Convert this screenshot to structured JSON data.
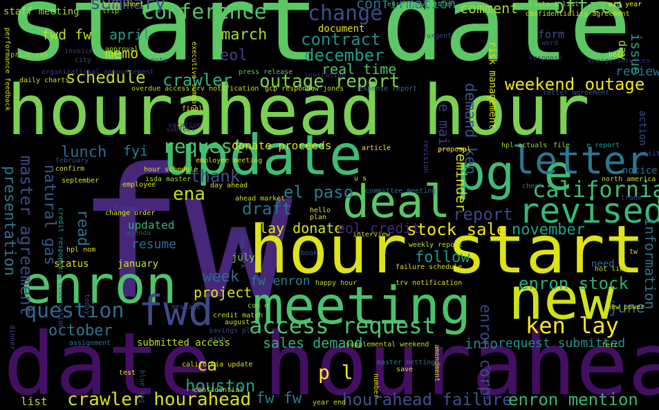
{
  "words": [
    {
      "text": "start date",
      "color": "#5cc863"
    },
    {
      "text": "hourahead hour",
      "color": "#7ad151"
    },
    {
      "text": "fw",
      "color": "#46277a"
    },
    {
      "text": "date hourahead",
      "color": "#440f62"
    },
    {
      "text": "update",
      "color": "#3fbc73"
    },
    {
      "text": "hour start",
      "color": "#dde318"
    },
    {
      "text": "meeting",
      "color": "#4ac16d"
    },
    {
      "text": "new",
      "color": "#d0e11c"
    },
    {
      "text": "enron",
      "color": "#4ec36b"
    },
    {
      "text": "deal",
      "color": "#58c765"
    },
    {
      "text": "pg e",
      "color": "#3fbc73"
    },
    {
      "text": "letter",
      "color": "#2a788e"
    },
    {
      "text": "revised",
      "color": "#37b878"
    },
    {
      "text": "fwd",
      "color": "#3e4a89"
    },
    {
      "text": "california",
      "color": "#3dbc74"
    },
    {
      "text": "conference",
      "color": "#52c569"
    },
    {
      "text": "change",
      "color": "#3e4c8a"
    },
    {
      "text": "office",
      "color": "#6ccd5a"
    },
    {
      "text": "comment",
      "color": "#9fda3a"
    },
    {
      "text": "summary",
      "color": "#3d4e8a"
    },
    {
      "text": "confirmation",
      "color": "#2c718e"
    },
    {
      "text": "contract",
      "color": "#228b8d"
    },
    {
      "text": "march",
      "color": "#a2da37"
    },
    {
      "text": "december",
      "color": "#1fa088"
    },
    {
      "text": "eol",
      "color": "#433e85"
    },
    {
      "text": "real time",
      "color": "#52c569"
    },
    {
      "text": "schedule",
      "color": "#b5de2b"
    },
    {
      "text": "crawler",
      "color": "#2fb47c"
    },
    {
      "text": "outage report",
      "color": "#7ad151"
    },
    {
      "text": "weekend outage",
      "color": "#f1e51d"
    },
    {
      "text": "request",
      "color": "#4ec36b"
    },
    {
      "text": "access request",
      "color": "#50c46a"
    },
    {
      "text": "ken lay",
      "color": "#fde725"
    },
    {
      "text": "question",
      "color": "#2f6c8e"
    },
    {
      "text": "october",
      "color": "#2a788e"
    },
    {
      "text": "week",
      "color": "#31688e"
    },
    {
      "text": "project",
      "color": "#dde318"
    },
    {
      "text": "june",
      "color": "#30698e"
    },
    {
      "text": "information",
      "color": "#2a768e"
    },
    {
      "text": "enron stock",
      "color": "#29af7f"
    },
    {
      "text": "stock sale",
      "color": "#f1e51d"
    },
    {
      "text": "november",
      "color": "#20a486"
    },
    {
      "text": "draft",
      "color": "#2c728e"
    },
    {
      "text": "report",
      "color": "#414487"
    },
    {
      "text": "lay donate",
      "color": "#dde318"
    },
    {
      "text": "eol credit",
      "color": "#482878"
    },
    {
      "text": "follow",
      "color": "#1f988b"
    },
    {
      "text": "fw enron",
      "color": "#26828e"
    },
    {
      "text": "sales demand",
      "color": "#2db27d"
    },
    {
      "text": "p l",
      "color": "#fde725"
    },
    {
      "text": "ca",
      "color": "#d8e219"
    },
    {
      "text": "houston",
      "color": "#1fa088"
    },
    {
      "text": "crawler hourahead",
      "color": "#d8e219"
    },
    {
      "text": "fw fw",
      "color": "#287c8e"
    },
    {
      "text": "hourahead failure",
      "color": "#3b528b"
    },
    {
      "text": "enron mention",
      "color": "#35b779"
    },
    {
      "text": "info",
      "color": "#25858e"
    },
    {
      "text": "request submitted",
      "color": "#21918c"
    },
    {
      "text": "submitted access",
      "color": "#c2df23"
    },
    {
      "text": "list",
      "color": "#b5de2b"
    },
    {
      "text": "thank",
      "color": "#3b528b"
    },
    {
      "text": "ena",
      "color": "#c2df23"
    },
    {
      "text": "lunch",
      "color": "#30698e"
    },
    {
      "text": "fyi",
      "color": "#26828e"
    },
    {
      "text": "memo",
      "color": "#d0e11c"
    },
    {
      "text": "april",
      "color": "#1f9e89"
    },
    {
      "text": "issue",
      "color": "#20a486"
    },
    {
      "text": "day",
      "color": "#a2da37"
    },
    {
      "text": "review",
      "color": "#2a788e"
    },
    {
      "text": "form",
      "color": "#3e4a89"
    },
    {
      "text": "fwd fw",
      "color": "#b8de29"
    },
    {
      "text": "staff meeting",
      "color": "#9fda3a"
    },
    {
      "text": "document",
      "color": "#dde318"
    },
    {
      "text": "resume",
      "color": "#2e6f8e"
    },
    {
      "text": "updated",
      "color": "#31b57b"
    },
    {
      "text": "january",
      "color": "#d0e11c"
    },
    {
      "text": "status",
      "color": "#d8e219"
    },
    {
      "text": "july",
      "color": "#75d054"
    },
    {
      "text": "need",
      "color": "#2e6e8e"
    },
    {
      "text": "donate proceeds",
      "color": "#dde318"
    },
    {
      "text": "el paso",
      "color": "#27808e"
    },
    {
      "text": "presentation",
      "color": "#2a788e"
    },
    {
      "text": "master agreement",
      "color": "#3e4a89"
    },
    {
      "text": "natural gas",
      "color": "#365c8d"
    },
    {
      "text": "read",
      "color": "#2b758e"
    },
    {
      "text": "reminder",
      "color": "#cae11f"
    },
    {
      "text": "demand ken",
      "color": "#3b528b"
    },
    {
      "text": "e mail",
      "color": "#453882"
    },
    {
      "text": "enron corp",
      "color": "#404688"
    },
    {
      "text": "risk management",
      "color": "#d8e219"
    },
    {
      "text": "notice",
      "color": "#2c728e"
    },
    {
      "text": "action",
      "color": "#3e4c8a"
    },
    {
      "text": "term sheet",
      "color": "#c8e020"
    },
    {
      "text": "trip",
      "color": "#a5db36"
    },
    {
      "text": "enron newsletter",
      "color": "#40bd72"
    },
    {
      "text": "contact list",
      "color": "#8fd744"
    },
    {
      "text": "mid year",
      "color": "#fde725"
    },
    {
      "text": "confidentiality agreement",
      "color": "#d8e219"
    },
    {
      "text": "urgent",
      "color": "#404688"
    },
    {
      "text": "word",
      "color": "#453882"
    },
    {
      "text": "response",
      "color": "#472d7b"
    },
    {
      "text": "help",
      "color": "#dde318"
    },
    {
      "text": "energy services",
      "color": "#482878"
    },
    {
      "text": "letter agreement",
      "color": "#3b528b"
    },
    {
      "text": "invoice",
      "color": "#433e85"
    },
    {
      "text": "approval",
      "color": "#9fda3a"
    },
    {
      "text": "price cap",
      "color": "#9fda3a"
    },
    {
      "text": "city",
      "color": "#3e4c8a"
    },
    {
      "text": "nota",
      "color": "#3e4a89"
    },
    {
      "text": "executive summary",
      "color": "#dde318"
    },
    {
      "text": "press release",
      "color": "#5ec962"
    },
    {
      "text": "invitation",
      "color": "#46327e"
    },
    {
      "text": "daily charts",
      "color": "#d0e11c"
    },
    {
      "text": "organizational announcement",
      "color": "#453882"
    },
    {
      "text": "overdue access",
      "color": "#b5de2b"
    },
    {
      "text": "erv notification",
      "color": "#d0e11c"
    },
    {
      "text": "gcp response",
      "color": "#dde318"
    },
    {
      "text": "dow jones",
      "color": "#c2df23"
    },
    {
      "text": "expense report",
      "color": "#2c728e"
    },
    {
      "text": "final",
      "color": "#dde318"
    },
    {
      "text": "vacation",
      "color": "#472d7b"
    },
    {
      "text": "subject",
      "color": "#482878"
    },
    {
      "text": "article",
      "color": "#fde725"
    },
    {
      "text": "revision",
      "color": "#404688"
    },
    {
      "text": "proposal",
      "color": "#fde725"
    },
    {
      "text": "hpl actuals",
      "color": "#9fda3a"
    },
    {
      "text": "file",
      "color": "#a2da37"
    },
    {
      "text": "e report",
      "color": "#1fa088"
    },
    {
      "text": "visit",
      "color": "#3e4c8a"
    },
    {
      "text": "north america",
      "color": "#c2df23"
    },
    {
      "text": "trade",
      "color": "#3e4a89"
    },
    {
      "text": "confirm",
      "color": "#d0e11c"
    },
    {
      "text": "february",
      "color": "#3e4c8a"
    },
    {
      "text": "employee meeting",
      "color": "#dde318"
    },
    {
      "text": "hour schedule",
      "color": "#dde318"
    },
    {
      "text": "isda master",
      "color": "#a2da37"
    },
    {
      "text": "september",
      "color": "#d0e11c"
    },
    {
      "text": "employee",
      "color": "#dde318"
    },
    {
      "text": "day ahead",
      "color": "#dde318"
    },
    {
      "text": "ahead market",
      "color": "#c2df23"
    },
    {
      "text": "committee meeting",
      "color": "#2c728e"
    },
    {
      "text": "u s",
      "color": "#dde318"
    },
    {
      "text": "hello",
      "color": "#dde318"
    },
    {
      "text": "plan",
      "color": "#dde318"
    },
    {
      "text": "change order",
      "color": "#dde318"
    },
    {
      "text": "agenda",
      "color": "#3e4c8a"
    },
    {
      "text": "friday",
      "color": "#3e4a89"
    },
    {
      "text": "hpl nom",
      "color": "#dde318"
    },
    {
      "text": "price reservation",
      "color": "#3e4c8a"
    },
    {
      "text": "credit response",
      "color": "#1fa088"
    },
    {
      "text": "interview",
      "color": "#c2df23"
    },
    {
      "text": "weekly report",
      "color": "#c2df23"
    },
    {
      "text": "failure schedule",
      "color": "#dde318"
    },
    {
      "text": "happy hour",
      "color": "#b5de2b"
    },
    {
      "text": "trv notification",
      "color": "#dde318"
    },
    {
      "text": "book",
      "color": "#3e4c8a"
    },
    {
      "text": "message",
      "color": "#404688"
    },
    {
      "text": "com e",
      "color": "#8fd744"
    },
    {
      "text": "credit match",
      "color": "#c2df23"
    },
    {
      "text": "august",
      "color": "#c2df23"
    },
    {
      "text": "savings plan",
      "color": "#404688"
    },
    {
      "text": "gish",
      "color": "#2a788e"
    },
    {
      "text": "assignment",
      "color": "#2a788e"
    },
    {
      "text": "supplemental weekend",
      "color": "#c2df23"
    },
    {
      "text": "master netting",
      "color": "#2c728e"
    },
    {
      "text": "save",
      "color": "#dde318"
    },
    {
      "text": "california update",
      "color": "#dde318"
    },
    {
      "text": "confidential",
      "color": "#c2df23"
    },
    {
      "text": "blue dog",
      "color": "#3e4a89"
    },
    {
      "text": "test",
      "color": "#dde318"
    },
    {
      "text": "year end",
      "color": "#c2df23"
    },
    {
      "text": "number",
      "color": "#dde318"
    },
    {
      "text": "tomorrow",
      "color": "#3e4c8a"
    },
    {
      "text": "ferc",
      "color": "#c2df23"
    },
    {
      "text": "hot link",
      "color": "#c2df23"
    },
    {
      "text": "new power",
      "color": "#dde318"
    },
    {
      "text": "tw",
      "color": "#dde318"
    },
    {
      "text": "amendment",
      "color": "#c2df23"
    },
    {
      "text": "dinner",
      "color": "#404688"
    },
    {
      "text": "today",
      "color": "#404688"
    },
    {
      "text": "performance feedback",
      "color": "#d0e11c"
    },
    {
      "text": "check",
      "color": "#2c728e"
    },
    {
      "text": "new york",
      "color": "#3e4c8a"
    }
  ]
}
